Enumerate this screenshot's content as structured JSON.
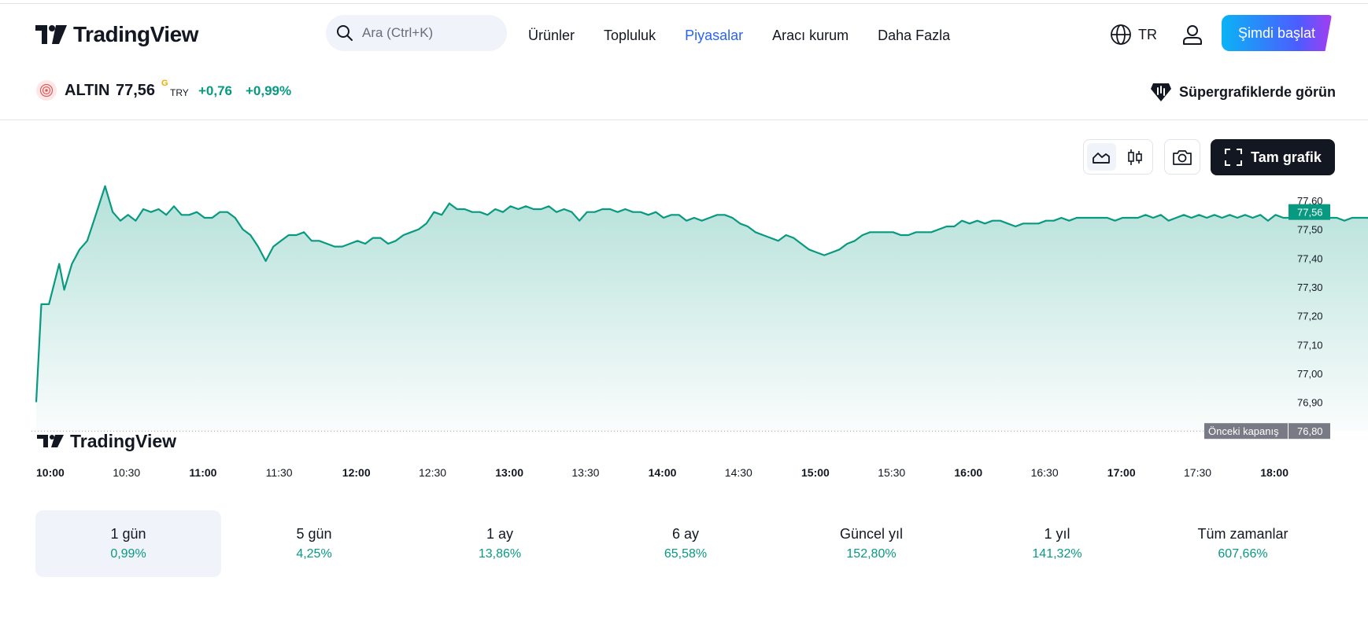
{
  "brand": {
    "name": "TradingView",
    "watermark": "TradingView"
  },
  "search": {
    "placeholder": "Ara (Ctrl+K)"
  },
  "nav": [
    {
      "label": "Ürünler",
      "active": false
    },
    {
      "label": "Topluluk",
      "active": false
    },
    {
      "label": "Piyasalar",
      "active": true
    },
    {
      "label": "Aracı kurum",
      "active": false
    },
    {
      "label": "Daha Fazla",
      "active": false
    }
  ],
  "header": {
    "lang": "TR",
    "cta": "Şimdi başlat"
  },
  "symbol": {
    "name": "ALTIN",
    "price": "77,56",
    "badge": "G",
    "currency": "TRY",
    "change": "+0,76",
    "change_pct": "+0,99%",
    "supercharts": "Süpergrafiklerde görün"
  },
  "toolbar": {
    "full_chart": "Tam grafik"
  },
  "colors": {
    "accent": "#089981",
    "brand_link": "#2962ff",
    "prev_close_bg": "#787b86"
  },
  "chart_data": {
    "type": "area",
    "ylim": [
      76.8,
      77.65
    ],
    "y_ticks": [
      "77,60",
      "77,50",
      "77,40",
      "77,30",
      "77,20",
      "77,10",
      "77,00",
      "76,90"
    ],
    "x_ticks": [
      {
        "label": "10:00",
        "bold": true
      },
      {
        "label": "10:30",
        "bold": false
      },
      {
        "label": "11:00",
        "bold": true
      },
      {
        "label": "11:30",
        "bold": false
      },
      {
        "label": "12:00",
        "bold": true
      },
      {
        "label": "12:30",
        "bold": false
      },
      {
        "label": "13:00",
        "bold": true
      },
      {
        "label": "13:30",
        "bold": false
      },
      {
        "label": "14:00",
        "bold": true
      },
      {
        "label": "14:30",
        "bold": false
      },
      {
        "label": "15:00",
        "bold": true
      },
      {
        "label": "15:30",
        "bold": false
      },
      {
        "label": "16:00",
        "bold": true
      },
      {
        "label": "16:30",
        "bold": false
      },
      {
        "label": "17:00",
        "bold": true
      },
      {
        "label": "17:30",
        "bold": false
      },
      {
        "label": "18:00",
        "bold": true
      }
    ],
    "last_price_label": "77,56",
    "prev_close": {
      "label": "Önceki kapanış",
      "value": 76.8,
      "value_label": "76,80"
    },
    "points": [
      [
        0,
        76.9
      ],
      [
        2,
        77.24
      ],
      [
        5,
        77.24
      ],
      [
        9,
        77.38
      ],
      [
        11,
        77.29
      ],
      [
        14,
        77.38
      ],
      [
        17,
        77.43
      ],
      [
        20,
        77.46
      ],
      [
        23,
        77.54
      ],
      [
        27,
        77.65
      ],
      [
        30,
        77.56
      ],
      [
        33,
        77.53
      ],
      [
        36,
        77.55
      ],
      [
        39,
        77.53
      ],
      [
        42,
        77.57
      ],
      [
        45,
        77.56
      ],
      [
        48,
        77.57
      ],
      [
        51,
        77.55
      ],
      [
        54,
        77.58
      ],
      [
        57,
        77.55
      ],
      [
        60,
        77.55
      ],
      [
        63,
        77.56
      ],
      [
        66,
        77.54
      ],
      [
        69,
        77.54
      ],
      [
        72,
        77.56
      ],
      [
        75,
        77.56
      ],
      [
        78,
        77.54
      ],
      [
        81,
        77.5
      ],
      [
        84,
        77.48
      ],
      [
        87,
        77.44
      ],
      [
        90,
        77.39
      ],
      [
        93,
        77.44
      ],
      [
        96,
        77.46
      ],
      [
        99,
        77.48
      ],
      [
        102,
        77.48
      ],
      [
        105,
        77.49
      ],
      [
        108,
        77.46
      ],
      [
        111,
        77.46
      ],
      [
        114,
        77.45
      ],
      [
        117,
        77.44
      ],
      [
        120,
        77.44
      ],
      [
        123,
        77.45
      ],
      [
        126,
        77.46
      ],
      [
        129,
        77.45
      ],
      [
        132,
        77.47
      ],
      [
        135,
        77.47
      ],
      [
        138,
        77.45
      ],
      [
        141,
        77.46
      ],
      [
        144,
        77.48
      ],
      [
        147,
        77.49
      ],
      [
        150,
        77.5
      ],
      [
        153,
        77.52
      ],
      [
        156,
        77.56
      ],
      [
        159,
        77.55
      ],
      [
        162,
        77.59
      ],
      [
        165,
        77.57
      ],
      [
        168,
        77.57
      ],
      [
        171,
        77.56
      ],
      [
        174,
        77.56
      ],
      [
        177,
        77.55
      ],
      [
        180,
        77.57
      ],
      [
        183,
        77.56
      ],
      [
        186,
        77.58
      ],
      [
        189,
        77.57
      ],
      [
        192,
        77.58
      ],
      [
        195,
        77.57
      ],
      [
        198,
        77.57
      ],
      [
        201,
        77.58
      ],
      [
        204,
        77.56
      ],
      [
        207,
        77.57
      ],
      [
        210,
        77.56
      ],
      [
        213,
        77.53
      ],
      [
        216,
        77.56
      ],
      [
        219,
        77.56
      ],
      [
        222,
        77.57
      ],
      [
        225,
        77.57
      ],
      [
        228,
        77.56
      ],
      [
        231,
        77.57
      ],
      [
        234,
        77.56
      ],
      [
        237,
        77.56
      ],
      [
        240,
        77.55
      ],
      [
        243,
        77.56
      ],
      [
        246,
        77.54
      ],
      [
        249,
        77.55
      ],
      [
        252,
        77.55
      ],
      [
        255,
        77.53
      ],
      [
        258,
        77.54
      ],
      [
        261,
        77.53
      ],
      [
        264,
        77.54
      ],
      [
        267,
        77.55
      ],
      [
        270,
        77.55
      ],
      [
        273,
        77.54
      ],
      [
        276,
        77.52
      ],
      [
        279,
        77.51
      ],
      [
        282,
        77.49
      ],
      [
        285,
        77.48
      ],
      [
        288,
        77.47
      ],
      [
        291,
        77.46
      ],
      [
        294,
        77.48
      ],
      [
        297,
        77.47
      ],
      [
        300,
        77.45
      ],
      [
        303,
        77.43
      ],
      [
        306,
        77.42
      ],
      [
        309,
        77.41
      ],
      [
        312,
        77.42
      ],
      [
        315,
        77.43
      ],
      [
        318,
        77.45
      ],
      [
        321,
        77.46
      ],
      [
        324,
        77.48
      ],
      [
        327,
        77.49
      ],
      [
        330,
        77.49
      ],
      [
        333,
        77.49
      ],
      [
        336,
        77.49
      ],
      [
        339,
        77.48
      ],
      [
        342,
        77.48
      ],
      [
        345,
        77.49
      ],
      [
        348,
        77.49
      ],
      [
        351,
        77.49
      ],
      [
        354,
        77.5
      ],
      [
        357,
        77.51
      ],
      [
        360,
        77.51
      ],
      [
        363,
        77.53
      ],
      [
        366,
        77.52
      ],
      [
        369,
        77.53
      ],
      [
        372,
        77.52
      ],
      [
        375,
        77.53
      ],
      [
        378,
        77.53
      ],
      [
        381,
        77.52
      ],
      [
        384,
        77.51
      ],
      [
        387,
        77.52
      ],
      [
        390,
        77.52
      ],
      [
        393,
        77.52
      ],
      [
        396,
        77.53
      ],
      [
        399,
        77.53
      ],
      [
        402,
        77.54
      ],
      [
        405,
        77.53
      ],
      [
        408,
        77.54
      ],
      [
        411,
        77.54
      ],
      [
        414,
        77.54
      ],
      [
        417,
        77.54
      ],
      [
        420,
        77.54
      ],
      [
        423,
        77.53
      ],
      [
        426,
        77.54
      ],
      [
        429,
        77.54
      ],
      [
        432,
        77.54
      ],
      [
        435,
        77.55
      ],
      [
        438,
        77.54
      ],
      [
        441,
        77.55
      ],
      [
        444,
        77.53
      ],
      [
        447,
        77.54
      ],
      [
        450,
        77.55
      ],
      [
        453,
        77.54
      ],
      [
        456,
        77.55
      ],
      [
        459,
        77.54
      ],
      [
        462,
        77.55
      ],
      [
        465,
        77.54
      ],
      [
        468,
        77.55
      ],
      [
        471,
        77.54
      ],
      [
        474,
        77.55
      ],
      [
        477,
        77.54
      ],
      [
        480,
        77.55
      ],
      [
        483,
        77.53
      ],
      [
        486,
        77.55
      ],
      [
        489,
        77.54
      ],
      [
        492,
        77.54
      ],
      [
        495,
        77.55
      ],
      [
        498,
        77.54
      ],
      [
        501,
        77.55
      ],
      [
        504,
        77.54
      ],
      [
        507,
        77.54
      ],
      [
        510,
        77.54
      ],
      [
        513,
        77.53
      ],
      [
        516,
        77.54
      ],
      [
        519,
        77.54
      ],
      [
        522,
        77.54
      ],
      [
        525,
        77.53
      ],
      [
        528,
        77.54
      ],
      [
        531,
        77.53
      ],
      [
        534,
        77.54
      ],
      [
        537,
        77.54
      ],
      [
        540,
        77.55
      ],
      [
        543,
        77.55
      ],
      [
        546,
        77.55
      ],
      [
        549,
        77.55
      ],
      [
        552,
        77.53
      ],
      [
        555,
        77.56
      ],
      [
        558,
        77.57
      ],
      [
        561,
        77.58
      ],
      [
        564,
        77.58
      ],
      [
        567,
        77.58
      ],
      [
        570,
        77.57
      ],
      [
        573,
        77.57
      ],
      [
        576,
        77.56
      ]
    ]
  },
  "periods": [
    {
      "label": "1 gün",
      "value": "0,99%",
      "active": true
    },
    {
      "label": "5 gün",
      "value": "4,25%",
      "active": false
    },
    {
      "label": "1 ay",
      "value": "13,86%",
      "active": false
    },
    {
      "label": "6 ay",
      "value": "65,58%",
      "active": false
    },
    {
      "label": "Güncel yıl",
      "value": "152,80%",
      "active": false
    },
    {
      "label": "1 yıl",
      "value": "141,32%",
      "active": false
    },
    {
      "label": "Tüm zamanlar",
      "value": "607,66%",
      "active": false
    }
  ]
}
